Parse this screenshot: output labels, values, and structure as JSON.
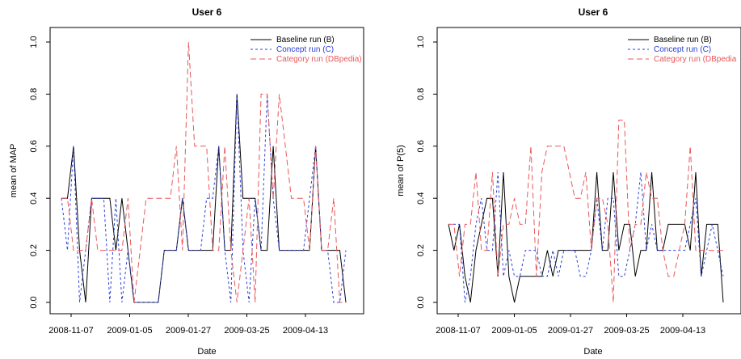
{
  "chart_data": [
    {
      "type": "line",
      "title": "User 6",
      "xlabel": "Date",
      "ylabel": "mean of MAP",
      "ylim": [
        0,
        1
      ],
      "yticks": [
        "0.0",
        "0.2",
        "0.4",
        "0.6",
        "0.8",
        "1.0"
      ],
      "xtick_labels": [
        "2008-11-07",
        "2009-01-05",
        "2009-01-27",
        "2009-03-25",
        "2009-04-13"
      ],
      "grid": false,
      "legend_position": "top-right",
      "series": [
        {
          "name": "Baseline run (B)",
          "color": "#000000",
          "dash": "solid",
          "values": [
            0.4,
            0.4,
            0.6,
            0.2,
            0.0,
            0.4,
            0.4,
            0.4,
            0.4,
            0.2,
            0.4,
            0.2,
            0.0,
            0.0,
            0.0,
            0.0,
            0.0,
            0.2,
            0.2,
            0.2,
            0.4,
            0.2,
            0.2,
            0.2,
            0.2,
            0.2,
            0.6,
            0.2,
            0.2,
            0.8,
            0.4,
            0.4,
            0.4,
            0.2,
            0.2,
            0.6,
            0.2,
            0.2,
            0.2,
            0.2,
            0.2,
            0.2,
            0.6,
            0.2,
            0.2,
            0.2,
            0.2,
            0.0
          ]
        },
        {
          "name": "Concept run (C)",
          "color": "#2b3fd6",
          "dash": "dotted",
          "values": [
            0.4,
            0.2,
            0.6,
            0.0,
            0.2,
            0.4,
            0.4,
            0.4,
            0.0,
            0.4,
            0.0,
            0.2,
            0.0,
            0.0,
            0.0,
            0.0,
            0.0,
            0.2,
            0.2,
            0.2,
            0.4,
            0.2,
            0.2,
            0.2,
            0.4,
            0.4,
            0.6,
            0.2,
            0.0,
            0.8,
            0.2,
            0.0,
            0.4,
            0.2,
            0.8,
            0.4,
            0.2,
            0.2,
            0.2,
            0.2,
            0.2,
            0.4,
            0.6,
            0.2,
            0.2,
            0.0,
            0.0,
            0.2
          ]
        },
        {
          "name": "Category run (DBpedia)",
          "color": "#e8585a",
          "dash": "dashed",
          "values": [
            0.4,
            0.4,
            0.2,
            0.2,
            0.2,
            0.4,
            0.2,
            0.2,
            0.2,
            0.2,
            0.2,
            0.4,
            0.0,
            0.2,
            0.4,
            0.4,
            0.4,
            0.4,
            0.4,
            0.6,
            0.2,
            1.0,
            0.6,
            0.6,
            0.6,
            0.2,
            0.2,
            0.6,
            0.2,
            0.0,
            0.2,
            0.4,
            0.0,
            0.8,
            0.8,
            0.4,
            0.8,
            0.6,
            0.4,
            0.4,
            0.4,
            0.2,
            0.6,
            0.2,
            0.2,
            0.4,
            0.0,
            0.0
          ]
        }
      ]
    },
    {
      "type": "line",
      "title": "User 6",
      "xlabel": "Date",
      "ylabel": "mean of P(5)",
      "ylim": [
        0,
        1
      ],
      "yticks": [
        "0.0",
        "0.2",
        "0.4",
        "0.6",
        "0.8",
        "1.0"
      ],
      "xtick_labels": [
        "2008-11-07",
        "2009-01-05",
        "2009-01-27",
        "2009-03-25",
        "2009-04-13"
      ],
      "grid": false,
      "legend_position": "top-right",
      "legend_labels": [
        "Baseline run (B)",
        "Concept run (C)",
        "Category run (DBpedia"
      ],
      "series": [
        {
          "name": "Baseline run (B)",
          "color": "#000000",
          "dash": "solid",
          "values": [
            0.3,
            0.2,
            0.3,
            0.1,
            0.0,
            0.2,
            0.3,
            0.4,
            0.4,
            0.1,
            0.5,
            0.1,
            0.0,
            0.1,
            0.1,
            0.1,
            0.1,
            0.1,
            0.2,
            0.1,
            0.2,
            0.2,
            0.2,
            0.2,
            0.2,
            0.2,
            0.2,
            0.5,
            0.2,
            0.2,
            0.5,
            0.2,
            0.3,
            0.3,
            0.1,
            0.2,
            0.2,
            0.5,
            0.2,
            0.2,
            0.3,
            0.3,
            0.3,
            0.3,
            0.2,
            0.5,
            0.1,
            0.3,
            0.3,
            0.3,
            0.0
          ]
        },
        {
          "name": "Concept run (C)",
          "color": "#2b3fd6",
          "dash": "dotted",
          "values": [
            0.3,
            0.3,
            0.3,
            0.0,
            0.1,
            0.3,
            0.4,
            0.2,
            0.2,
            0.5,
            0.1,
            0.2,
            0.1,
            0.1,
            0.2,
            0.2,
            0.2,
            0.1,
            0.1,
            0.2,
            0.1,
            0.2,
            0.2,
            0.2,
            0.1,
            0.1,
            0.2,
            0.4,
            0.2,
            0.4,
            0.4,
            0.1,
            0.1,
            0.2,
            0.3,
            0.5,
            0.2,
            0.3,
            0.2,
            0.2,
            0.2,
            0.2,
            0.2,
            0.2,
            0.3,
            0.4,
            0.1,
            0.2,
            0.3,
            0.2,
            0.1
          ]
        },
        {
          "name": "Category run (DBpedia)",
          "color": "#e8585a",
          "dash": "dashed",
          "values": [
            0.3,
            0.3,
            0.1,
            0.3,
            0.3,
            0.5,
            0.2,
            0.2,
            0.5,
            0.1,
            0.3,
            0.3,
            0.4,
            0.3,
            0.3,
            0.6,
            0.1,
            0.5,
            0.6,
            0.6,
            0.6,
            0.6,
            0.5,
            0.4,
            0.4,
            0.5,
            0.2,
            0.4,
            0.4,
            0.3,
            0.0,
            0.7,
            0.7,
            0.2,
            0.3,
            0.3,
            0.5,
            0.4,
            0.4,
            0.2,
            0.1,
            0.1,
            0.2,
            0.3,
            0.6,
            0.2,
            0.2,
            0.2,
            0.2,
            0.2,
            0.2
          ]
        }
      ]
    }
  ]
}
